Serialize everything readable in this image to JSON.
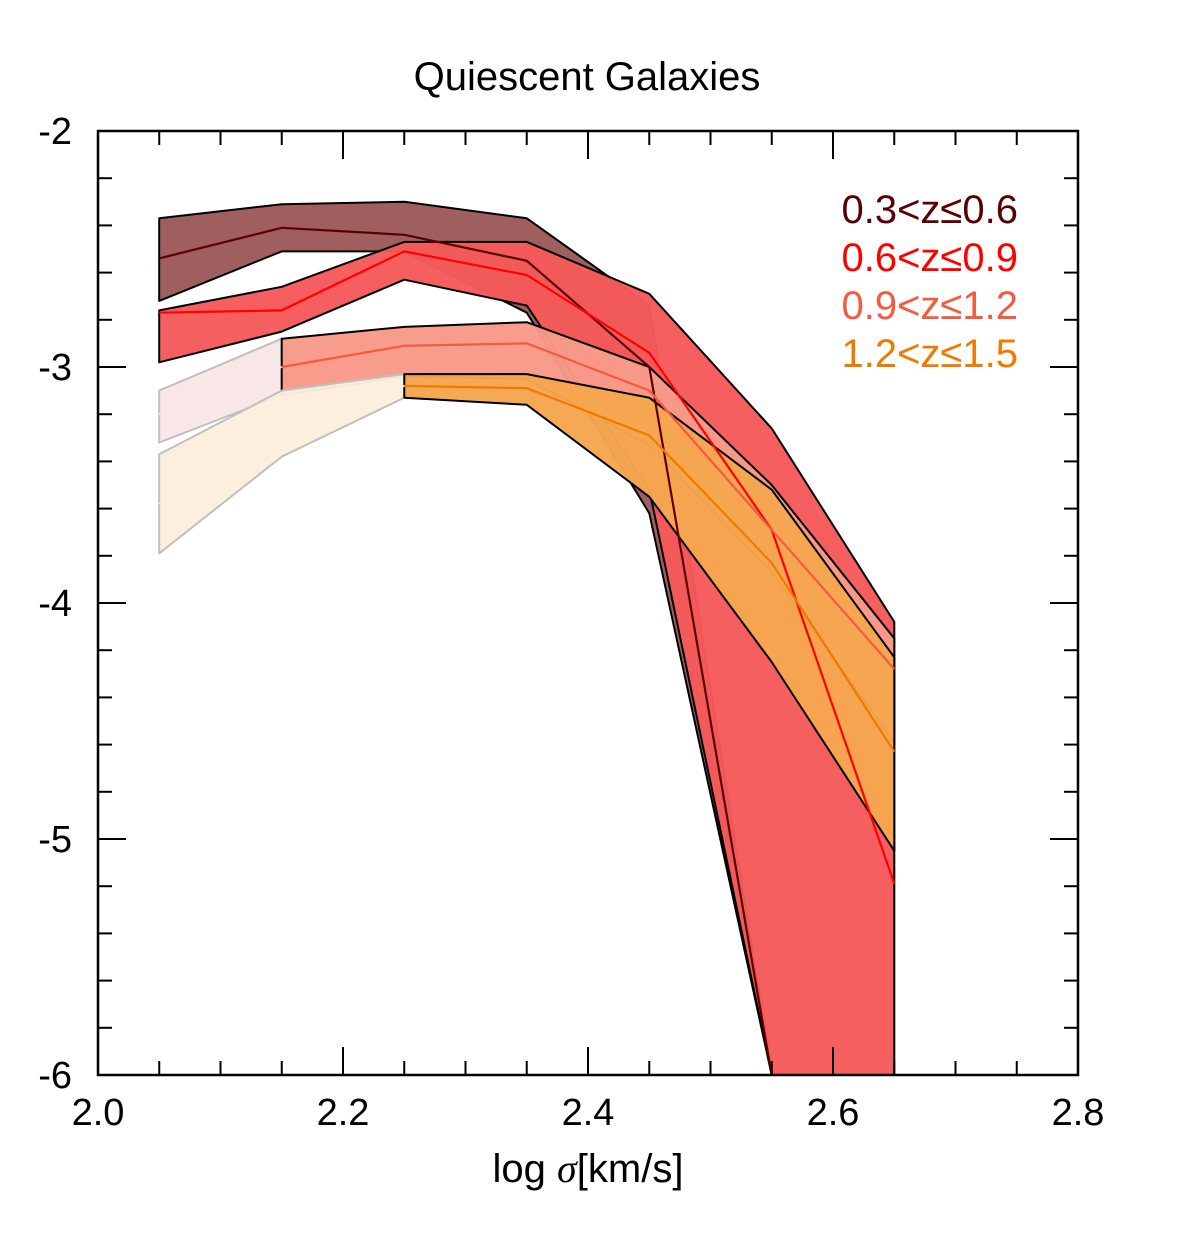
{
  "chart_data": {
    "type": "area",
    "title": "Quiescent Galaxies",
    "xlabel_prefix": "log ",
    "xlabel_symbol": "σ",
    "xlabel_suffix": "[km/s]",
    "ylabel": "",
    "xlim": [
      2.0,
      2.8
    ],
    "ylim": [
      -6,
      -2
    ],
    "x_ticks": [
      2.0,
      2.2,
      2.4,
      2.6,
      2.8
    ],
    "x_tick_labels": [
      "2.0",
      "2.2",
      "2.4",
      "2.6",
      "2.8"
    ],
    "y_ticks": [
      -6,
      -5,
      -4,
      -3,
      -2
    ],
    "y_tick_labels": [
      "-6",
      "-5",
      "-4",
      "-3",
      "-2"
    ],
    "x_minor_step": 0.05,
    "y_minor_step": 0.2,
    "grid": false,
    "legend_position": "top-right",
    "series": [
      {
        "name": "0.3<z≤0.6",
        "color": "#5a0000",
        "fill": "#9c5a5a",
        "pale_fill": "#9c5a5a",
        "x": [
          2.05,
          2.15,
          2.25,
          2.35,
          2.45,
          2.55
        ],
        "upper": [
          -2.37,
          -2.31,
          -2.3,
          -2.37,
          -2.74,
          -5.98
        ],
        "lower": [
          -2.72,
          -2.51,
          -2.51,
          -2.77,
          -3.62,
          -6.0
        ],
        "median": [
          -2.54,
          -2.41,
          -2.44,
          -2.55,
          -3.0,
          -6.0
        ],
        "pale_until": 2.05
      },
      {
        "name": "0.6<z≤0.9",
        "color": "#ff0000",
        "fill": "#f55a5a",
        "pale_fill": "#f55a5a",
        "x": [
          2.05,
          2.15,
          2.25,
          2.35,
          2.45,
          2.55,
          2.65
        ],
        "upper": [
          -2.76,
          -2.66,
          -2.47,
          -2.47,
          -2.69,
          -3.26,
          -4.08
        ],
        "lower": [
          -2.98,
          -2.85,
          -2.63,
          -2.74,
          -3.52,
          -6.0,
          -6.0
        ],
        "median": [
          -2.77,
          -2.76,
          -2.51,
          -2.61,
          -2.94,
          -3.69,
          -5.19
        ],
        "pale_until": 2.05
      },
      {
        "name": "0.9<z≤1.2",
        "color": "#f55a40",
        "fill": "#f89a88",
        "pale_fill": "#f9e6e6",
        "x": [
          2.05,
          2.15,
          2.25,
          2.35,
          2.45,
          2.55,
          2.65
        ],
        "upper": [
          -3.1,
          -2.88,
          -2.83,
          -2.81,
          -3.0,
          -3.5,
          -4.15
        ],
        "lower": [
          -3.32,
          -3.12,
          -3.04,
          -3.05,
          -3.33,
          -3.87,
          -4.59
        ],
        "median": [
          -3.2,
          -3.0,
          -2.91,
          -2.9,
          -3.1,
          -3.69,
          -4.28
        ],
        "pale_until": 2.15
      },
      {
        "name": "1.2<z≤1.5",
        "color": "#f07a00",
        "fill": "#f6a64e",
        "pale_fill": "#fdeedd",
        "x": [
          2.05,
          2.15,
          2.25,
          2.35,
          2.45,
          2.55,
          2.65
        ],
        "upper": [
          -3.37,
          -3.1,
          -3.03,
          -3.03,
          -3.13,
          -3.52,
          -4.23
        ],
        "lower": [
          -3.79,
          -3.38,
          -3.13,
          -3.16,
          -3.55,
          -4.25,
          -5.05
        ],
        "median": [
          -3.58,
          -3.24,
          -3.08,
          -3.09,
          -3.29,
          -3.83,
          -4.63
        ],
        "pale_until": 2.25
      }
    ]
  }
}
